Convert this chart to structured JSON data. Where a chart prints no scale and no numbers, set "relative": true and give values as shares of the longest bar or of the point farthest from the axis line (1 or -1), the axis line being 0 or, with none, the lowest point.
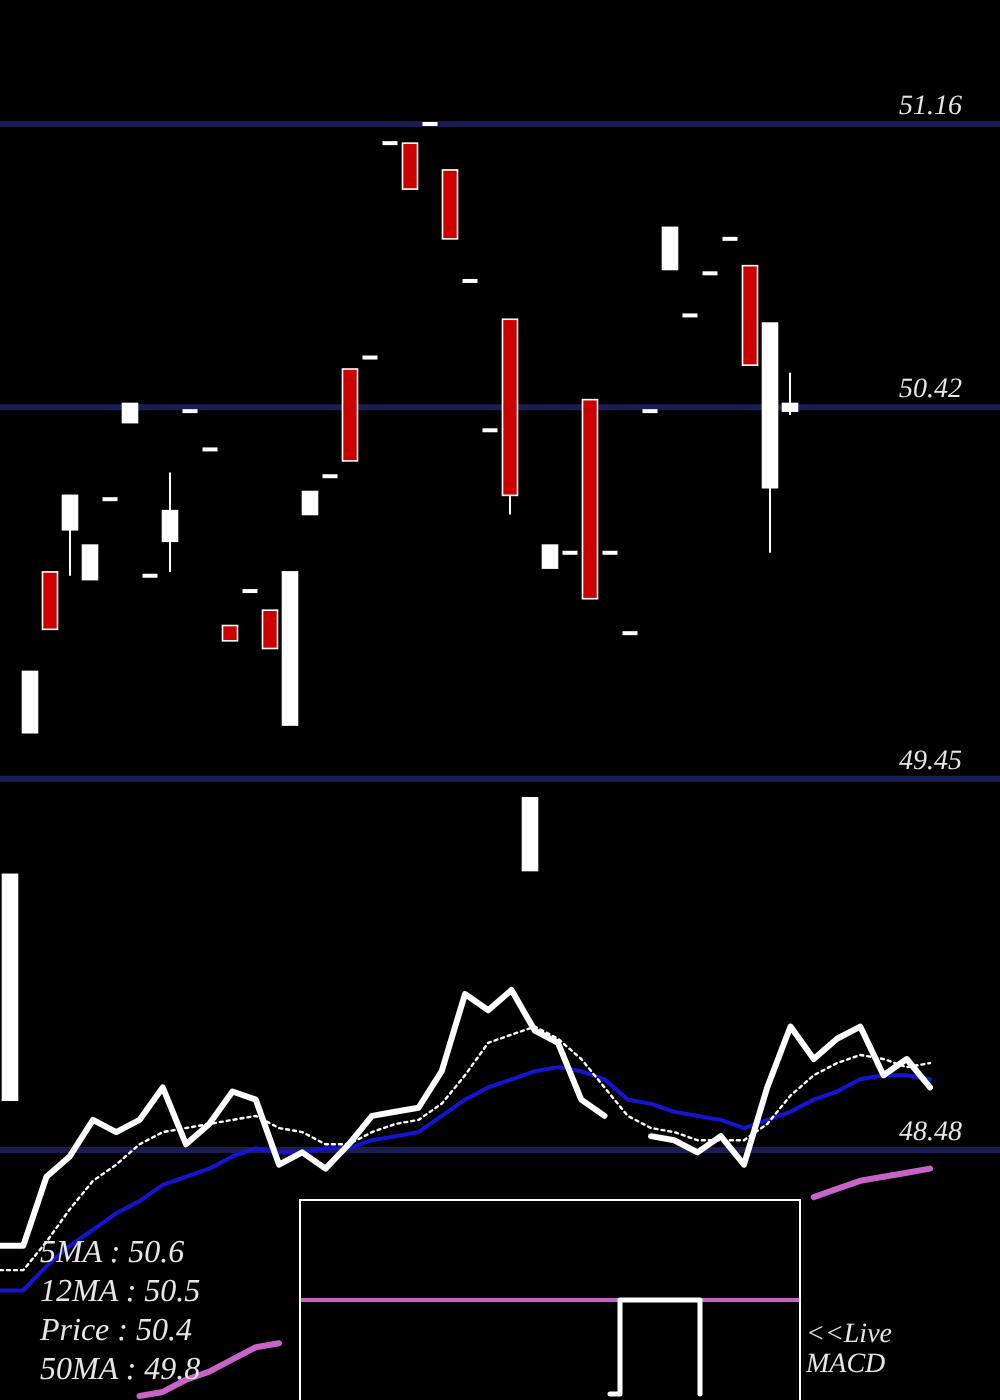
{
  "chart_data": [
    {
      "type": "candlestick",
      "categories": [
        null,
        null,
        null,
        null,
        null,
        null,
        null,
        null,
        null,
        null,
        null,
        null,
        null,
        null,
        null,
        null,
        null,
        null,
        null,
        null,
        null,
        null,
        null,
        null,
        null,
        null,
        null,
        null,
        null,
        null,
        null,
        null,
        null,
        null,
        null,
        null,
        null,
        null,
        null,
        null
      ],
      "ohlc": [
        [
          48.61,
          49.2,
          48.61,
          49.2
        ],
        [
          49.57,
          49.73,
          49.57,
          49.73
        ],
        [
          49.99,
          49.99,
          49.84,
          49.84
        ],
        [
          50.1,
          50.19,
          49.98,
          50.19
        ],
        [
          49.97,
          50.06,
          49.97,
          50.06
        ],
        [
          50.18,
          50.18,
          50.18,
          50.18
        ],
        [
          50.38,
          50.43,
          50.38,
          50.43
        ],
        [
          49.98,
          49.98,
          49.98,
          49.98
        ],
        [
          50.07,
          50.25,
          49.99,
          50.15
        ],
        [
          50.41,
          50.41,
          50.41,
          50.41
        ],
        [
          50.31,
          50.31,
          50.31,
          50.31
        ],
        [
          49.85,
          49.85,
          49.81,
          49.81
        ],
        [
          49.94,
          49.94,
          49.94,
          49.94
        ],
        [
          49.89,
          49.89,
          49.79,
          49.79
        ],
        [
          49.59,
          49.99,
          49.59,
          49.99
        ],
        [
          50.14,
          50.2,
          50.14,
          50.2
        ],
        [
          50.24,
          50.24,
          50.24,
          50.24
        ],
        [
          50.52,
          50.52,
          50.28,
          50.28
        ],
        [
          50.55,
          50.55,
          50.55,
          50.55
        ],
        [
          51.11,
          51.11,
          51.11,
          51.11
        ],
        [
          51.11,
          51.11,
          50.99,
          50.99
        ],
        [
          51.16,
          51.16,
          51.16,
          51.16
        ],
        [
          51.04,
          51.04,
          50.86,
          50.86
        ],
        [
          50.75,
          50.75,
          50.75,
          50.75
        ],
        [
          50.36,
          50.36,
          50.36,
          50.36
        ],
        [
          50.65,
          50.65,
          50.14,
          50.19
        ],
        [
          49.21,
          49.4,
          49.21,
          49.4
        ],
        [
          50,
          50.06,
          50,
          50.06
        ],
        [
          50.04,
          50.04,
          50.04,
          50.04
        ],
        [
          50.44,
          50.44,
          49.92,
          49.92
        ],
        [
          50.04,
          50.04,
          50.04,
          50.04
        ],
        [
          49.83,
          49.83,
          49.83,
          49.83
        ],
        [
          50.41,
          50.41,
          50.41,
          50.41
        ],
        [
          50.78,
          50.89,
          50.78,
          50.89
        ],
        [
          50.66,
          50.66,
          50.66,
          50.66
        ],
        [
          50.77,
          50.77,
          50.77,
          50.77
        ],
        [
          50.86,
          50.86,
          50.86,
          50.86
        ],
        [
          50.79,
          50.79,
          50.53,
          50.53
        ],
        [
          50.21,
          50.64,
          50.04,
          50.64
        ],
        [
          50.41,
          50.51,
          50.4,
          50.43
        ]
      ],
      "colors": [
        "#ffffff",
        "#ffffff",
        "#cc0000",
        "#ffffff",
        "#ffffff",
        "#ffffff",
        "#ffffff",
        "#ffffff",
        "#ffffff",
        "#ffffff",
        "#ffffff",
        "#cc0000",
        "#ffffff",
        "#cc0000",
        "#ffffff",
        "#ffffff",
        "#ffffff",
        "#cc0000",
        "#ffffff",
        "#ffffff",
        "#cc0000",
        "#ffffff",
        "#cc0000",
        "#ffffff",
        "#ffffff",
        "#cc0000",
        "#ffffff",
        "#ffffff",
        "#ffffff",
        "#cc0000",
        "#ffffff",
        "#ffffff",
        "#ffffff",
        "#ffffff",
        "#ffffff",
        "#ffffff",
        "#ffffff",
        "#cc0000",
        "#ffffff",
        "#ffffff"
      ],
      "ylim": [
        48.48,
        51.16
      ],
      "yticks": [
        48.48,
        49.45,
        50.42,
        51.16
      ],
      "grid": "y"
    },
    {
      "type": "line",
      "relative": true,
      "categories": [
        null,
        null,
        null,
        null,
        null,
        null,
        null,
        null,
        null,
        null,
        null,
        null,
        null,
        null,
        null,
        null,
        null,
        null,
        null,
        null,
        null,
        null,
        null,
        null,
        null,
        null,
        null,
        null,
        null,
        null,
        null,
        null,
        null,
        null,
        null,
        null,
        null,
        null,
        null,
        null,
        null
      ],
      "series": [
        {
          "color": "#c864c8",
          "values": [
            null,
            null,
            null,
            null,
            null,
            null,
            0,
            0.01,
            0.04,
            0.06,
            0.09,
            0.12,
            0.13,
            null,
            null,
            null,
            null,
            null,
            null,
            null,
            null,
            null,
            null,
            null,
            null,
            null,
            null,
            null,
            null,
            null,
            null,
            null,
            null,
            null,
            null,
            0.49,
            0.51,
            0.53,
            0.54,
            0.55,
            0.56
          ]
        },
        {
          "color": "#1414d2",
          "values": [
            0.26,
            0.26,
            0.32,
            0.37,
            0.41,
            0.45,
            0.48,
            0.52,
            0.54,
            0.56,
            0.59,
            0.61,
            0.6,
            0.6,
            0.61,
            0.61,
            0.63,
            0.64,
            0.65,
            0.69,
            0.73,
            0.76,
            0.78,
            0.8,
            0.81,
            0.8,
            0.78,
            0.73,
            0.72,
            0.7,
            0.69,
            0.68,
            0.66,
            0.68,
            0.7,
            0.73,
            0.75,
            0.78,
            0.79,
            0.79,
            0.78
          ]
        },
        {
          "color": "#ffffff",
          "line_style": "dotted",
          "values": [
            0.31,
            0.31,
            0.38,
            0.46,
            0.53,
            0.57,
            0.62,
            0.65,
            0.66,
            0.67,
            0.68,
            0.69,
            0.66,
            0.65,
            0.62,
            0.62,
            0.65,
            0.67,
            0.68,
            0.72,
            0.79,
            0.87,
            0.89,
            0.91,
            0.88,
            0.83,
            0.76,
            0.69,
            0.66,
            0.65,
            0.63,
            0.63,
            0.63,
            0.67,
            0.74,
            0.79,
            0.82,
            0.84,
            0.83,
            0.81,
            0.82
          ]
        },
        {
          "color": "#ffffff",
          "values": [
            0.37,
            0.37,
            0.54,
            0.59,
            0.68,
            0.65,
            0.68,
            0.76,
            0.62,
            0.67,
            0.75,
            0.73,
            0.57,
            0.6,
            0.56,
            0.62,
            0.69,
            0.7,
            0.71,
            0.8,
            0.99,
            0.95,
            1,
            0.9,
            0.87,
            0.73,
            0.69,
            null,
            0.64,
            0.63,
            0.6,
            0.64,
            0.57,
            0.76,
            0.91,
            0.83,
            0.88,
            0.91,
            0.79,
            0.83,
            0.76
          ]
        }
      ],
      "annotations": [
        "5MA : 50.6",
        "12MA : 50.5",
        "Price : 50.4",
        "50MA : 49.8"
      ]
    },
    {
      "type": "step",
      "relative": true,
      "categories": [
        null,
        null,
        null,
        null,
        null,
        null,
        null,
        null,
        null,
        null,
        null,
        null,
        null,
        null,
        null,
        null,
        null,
        null,
        null,
        null,
        null,
        null,
        null,
        null,
        null,
        null,
        null,
        null,
        null,
        null,
        null,
        null,
        null,
        null,
        null,
        null,
        null,
        null,
        null,
        null,
        null,
        null,
        null,
        null,
        null,
        null,
        null,
        null,
        null,
        null,
        null
      ],
      "series": [
        {
          "color": "#ffffff",
          "values": [
            null,
            null,
            null,
            null,
            null,
            null,
            null,
            null,
            null,
            null,
            null,
            null,
            null,
            null,
            null,
            null,
            null,
            null,
            null,
            null,
            null,
            null,
            null,
            null,
            null,
            null,
            null,
            null,
            null,
            null,
            null,
            -1,
            0,
            0,
            0,
            0,
            0,
            0,
            0,
            0,
            -1,
            null,
            null,
            null,
            null,
            null,
            null,
            null,
            null,
            null,
            null
          ]
        }
      ],
      "ref_lines": [
        {
          "axis": "y",
          "value": 0,
          "color": "#c864c8"
        }
      ],
      "annotations": [
        "<<Live MACD"
      ]
    }
  ]
}
